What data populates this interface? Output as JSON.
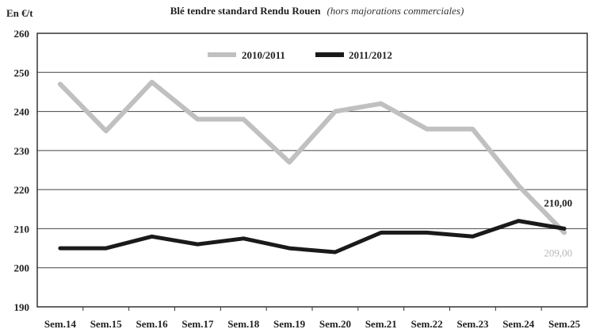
{
  "chart_data": {
    "type": "line",
    "title": "Blé tendre standard Rendu Rouen",
    "subtitle": "(hors majorations commerciales)",
    "ylabel": "En €/t",
    "xlabel": "",
    "ylim": [
      190,
      260
    ],
    "yticks": [
      "190",
      "200",
      "210",
      "220",
      "230",
      "240",
      "250",
      "260"
    ],
    "categories": [
      "Sem.14",
      "Sem.15",
      "Sem.16",
      "Sem.17",
      "Sem.18",
      "Sem.19",
      "Sem.20",
      "Sem.21",
      "Sem.22",
      "Sem.23",
      "Sem.24",
      "Sem.25"
    ],
    "grid": true,
    "legend": "top-center",
    "series": [
      {
        "name": "2010/2011",
        "color": "#c0c0c0",
        "values": [
          247,
          235,
          247.5,
          238,
          238,
          227,
          240,
          242,
          235.5,
          235.5,
          221,
          209
        ],
        "end_label": "209,00"
      },
      {
        "name": "2011/2012",
        "color": "#1a1a1a",
        "values": [
          205,
          205,
          208,
          206,
          207.5,
          205,
          204,
          209,
          209,
          208,
          212,
          210
        ],
        "end_label": "210,00"
      }
    ]
  }
}
